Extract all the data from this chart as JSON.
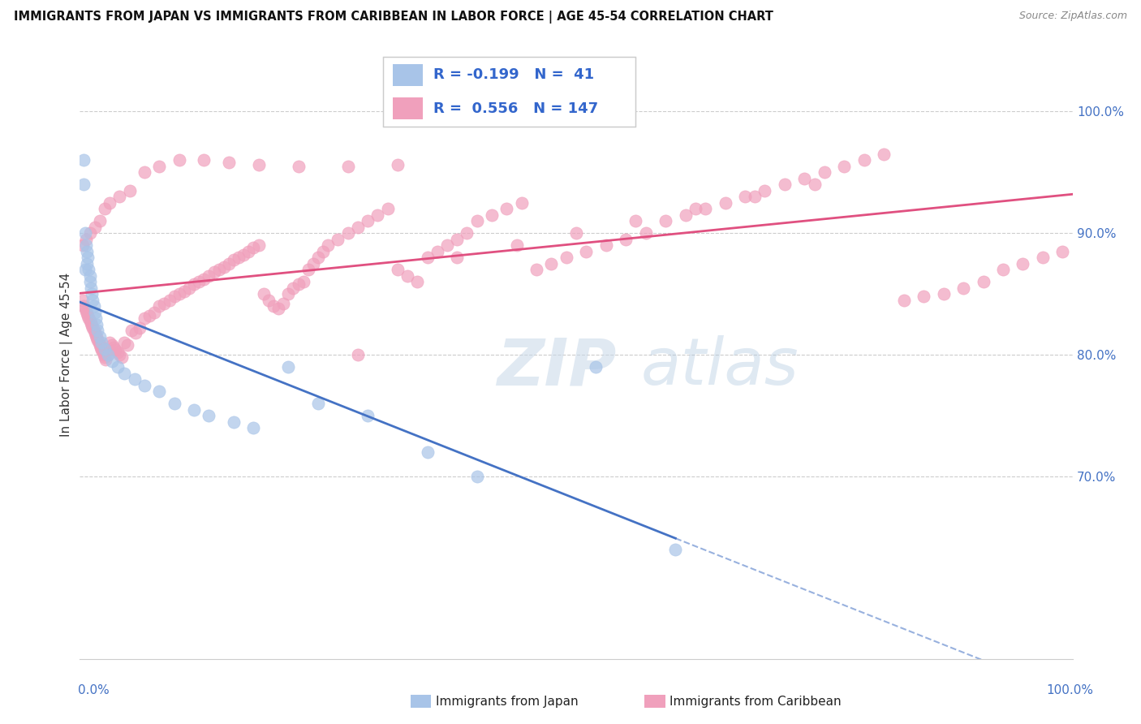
{
  "title": "IMMIGRANTS FROM JAPAN VS IMMIGRANTS FROM CARIBBEAN IN LABOR FORCE | AGE 45-54 CORRELATION CHART",
  "source": "Source: ZipAtlas.com",
  "ylabel": "In Labor Force | Age 45-54",
  "legend_japan_r": "-0.199",
  "legend_japan_n": "41",
  "legend_caribbean_r": "0.556",
  "legend_caribbean_n": "147",
  "color_japan": "#a8c4e8",
  "color_caribbean": "#f0a0bc",
  "color_japan_line": "#4472c4",
  "color_caribbean_line": "#e05080",
  "xlim": [
    0.0,
    1.0
  ],
  "ylim": [
    0.55,
    1.05
  ],
  "ytick_vals": [
    0.7,
    0.8,
    0.9,
    1.0
  ],
  "ytick_labels": [
    "70.0%",
    "80.0%",
    "90.0%",
    "100.0%"
  ],
  "japan_x": [
    0.004,
    0.004,
    0.005,
    0.005,
    0.006,
    0.007,
    0.007,
    0.008,
    0.009,
    0.01,
    0.01,
    0.011,
    0.012,
    0.013,
    0.014,
    0.015,
    0.016,
    0.017,
    0.018,
    0.02,
    0.022,
    0.025,
    0.028,
    0.032,
    0.038,
    0.045,
    0.055,
    0.065,
    0.08,
    0.095,
    0.115,
    0.13,
    0.155,
    0.175,
    0.21,
    0.24,
    0.29,
    0.35,
    0.4,
    0.52,
    0.6
  ],
  "japan_y": [
    0.96,
    0.94,
    0.9,
    0.87,
    0.89,
    0.885,
    0.875,
    0.88,
    0.87,
    0.865,
    0.86,
    0.855,
    0.85,
    0.845,
    0.84,
    0.835,
    0.83,
    0.825,
    0.82,
    0.815,
    0.81,
    0.805,
    0.8,
    0.795,
    0.79,
    0.785,
    0.78,
    0.775,
    0.77,
    0.76,
    0.755,
    0.75,
    0.745,
    0.74,
    0.79,
    0.76,
    0.75,
    0.72,
    0.7,
    0.79,
    0.64
  ],
  "caribbean_x": [
    0.003,
    0.004,
    0.005,
    0.006,
    0.007,
    0.008,
    0.009,
    0.01,
    0.011,
    0.012,
    0.013,
    0.014,
    0.015,
    0.016,
    0.017,
    0.018,
    0.019,
    0.02,
    0.021,
    0.022,
    0.023,
    0.024,
    0.025,
    0.026,
    0.028,
    0.03,
    0.032,
    0.034,
    0.036,
    0.038,
    0.04,
    0.042,
    0.045,
    0.048,
    0.052,
    0.056,
    0.06,
    0.065,
    0.07,
    0.075,
    0.08,
    0.085,
    0.09,
    0.095,
    0.1,
    0.105,
    0.11,
    0.115,
    0.12,
    0.125,
    0.13,
    0.135,
    0.14,
    0.145,
    0.15,
    0.155,
    0.16,
    0.165,
    0.17,
    0.175,
    0.18,
    0.185,
    0.19,
    0.195,
    0.2,
    0.205,
    0.21,
    0.215,
    0.22,
    0.225,
    0.23,
    0.235,
    0.24,
    0.245,
    0.25,
    0.26,
    0.27,
    0.28,
    0.29,
    0.3,
    0.31,
    0.32,
    0.33,
    0.34,
    0.35,
    0.36,
    0.37,
    0.38,
    0.39,
    0.4,
    0.415,
    0.43,
    0.445,
    0.46,
    0.475,
    0.49,
    0.51,
    0.53,
    0.55,
    0.57,
    0.59,
    0.61,
    0.63,
    0.65,
    0.67,
    0.69,
    0.71,
    0.73,
    0.75,
    0.77,
    0.79,
    0.81,
    0.83,
    0.85,
    0.87,
    0.89,
    0.91,
    0.93,
    0.95,
    0.97,
    0.99,
    0.003,
    0.006,
    0.01,
    0.015,
    0.02,
    0.025,
    0.03,
    0.04,
    0.05,
    0.065,
    0.08,
    0.1,
    0.125,
    0.15,
    0.18,
    0.22,
    0.27,
    0.32,
    0.28,
    0.38,
    0.44,
    0.5,
    0.56,
    0.62,
    0.68,
    0.74
  ],
  "caribbean_y": [
    0.845,
    0.84,
    0.838,
    0.836,
    0.834,
    0.832,
    0.83,
    0.828,
    0.826,
    0.824,
    0.822,
    0.82,
    0.818,
    0.816,
    0.814,
    0.812,
    0.81,
    0.808,
    0.806,
    0.804,
    0.802,
    0.8,
    0.798,
    0.796,
    0.8,
    0.81,
    0.808,
    0.806,
    0.804,
    0.802,
    0.8,
    0.798,
    0.81,
    0.808,
    0.82,
    0.818,
    0.822,
    0.83,
    0.832,
    0.835,
    0.84,
    0.842,
    0.845,
    0.848,
    0.85,
    0.852,
    0.855,
    0.858,
    0.86,
    0.862,
    0.865,
    0.868,
    0.87,
    0.872,
    0.875,
    0.878,
    0.88,
    0.882,
    0.885,
    0.888,
    0.89,
    0.85,
    0.845,
    0.84,
    0.838,
    0.842,
    0.85,
    0.855,
    0.858,
    0.86,
    0.87,
    0.875,
    0.88,
    0.885,
    0.89,
    0.895,
    0.9,
    0.905,
    0.91,
    0.915,
    0.92,
    0.87,
    0.865,
    0.86,
    0.88,
    0.885,
    0.89,
    0.895,
    0.9,
    0.91,
    0.915,
    0.92,
    0.925,
    0.87,
    0.875,
    0.88,
    0.885,
    0.89,
    0.895,
    0.9,
    0.91,
    0.915,
    0.92,
    0.925,
    0.93,
    0.935,
    0.94,
    0.945,
    0.95,
    0.955,
    0.96,
    0.965,
    0.845,
    0.848,
    0.85,
    0.855,
    0.86,
    0.87,
    0.875,
    0.88,
    0.885,
    0.89,
    0.895,
    0.9,
    0.905,
    0.91,
    0.92,
    0.925,
    0.93,
    0.935,
    0.95,
    0.955,
    0.96,
    0.96,
    0.958,
    0.956,
    0.955,
    0.955,
    0.956,
    0.8,
    0.88,
    0.89,
    0.9,
    0.91,
    0.92,
    0.93,
    0.94
  ]
}
